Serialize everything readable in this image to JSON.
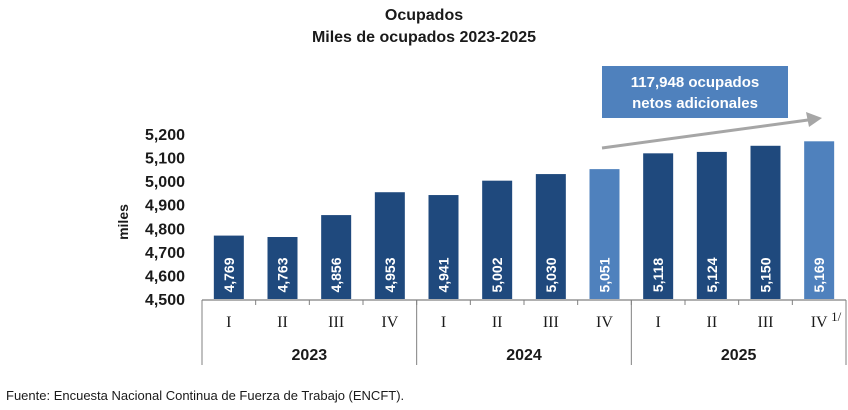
{
  "chart_data": {
    "type": "bar",
    "title": "Ocupados",
    "subtitle": "Miles de ocupados 2023-2025",
    "ylabel": "miles",
    "ylim": [
      4500,
      5200
    ],
    "yticks": [
      "4,500",
      "4,600",
      "4,700",
      "4,800",
      "4,900",
      "5,000",
      "5,100",
      "5,200"
    ],
    "ytick_values": [
      4500,
      4600,
      4700,
      4800,
      4900,
      5000,
      5100,
      5200
    ],
    "categories": [
      "I",
      "II",
      "III",
      "IV",
      "I",
      "II",
      "III",
      "IV",
      "I",
      "II",
      "III",
      "IV"
    ],
    "category_note_on_last": "1/",
    "values": [
      4769,
      4763,
      4856,
      4953,
      4941,
      5002,
      5030,
      5051,
      5118,
      5124,
      5150,
      5169
    ],
    "value_labels": [
      "4,769",
      "4,763",
      "4,856",
      "4,953",
      "4,941",
      "5,002",
      "5,030",
      "5,051",
      "5,118",
      "5,124",
      "5,150",
      "5,169"
    ],
    "highlighted": [
      false,
      false,
      false,
      false,
      false,
      false,
      false,
      true,
      false,
      false,
      false,
      true
    ],
    "groups": [
      {
        "label": "2023",
        "count": 4
      },
      {
        "label": "2024",
        "count": 4
      },
      {
        "label": "2025",
        "count": 4
      }
    ],
    "colors": {
      "bar": "#1f497d",
      "highlight": "#4f81bd",
      "callout": "#4f81bd",
      "arrow": "#a6a6a6"
    },
    "annotation": {
      "line1": "117,948 ocupados",
      "line2": "netos adicionales"
    },
    "grid": false,
    "legend": "none"
  },
  "footer": {
    "source": "Fuente: Encuesta Nacional Continua de Fuerza de Trabajo (ENCFT)."
  }
}
